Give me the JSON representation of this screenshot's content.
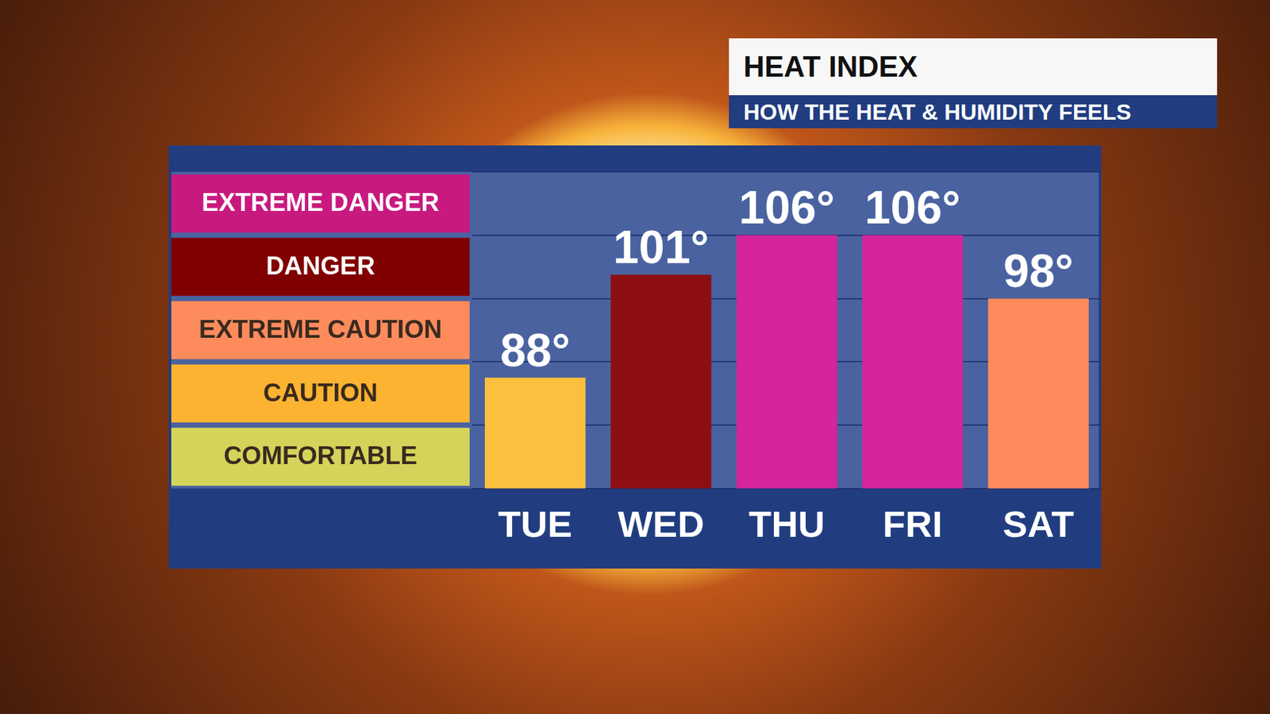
{
  "chart_data": {
    "type": "bar",
    "title": "HEAT INDEX",
    "subtitle": "HOW THE HEAT & HUMIDITY FEELS",
    "categories": [
      "TUE",
      "WED",
      "THU",
      "FRI",
      "SAT"
    ],
    "values": [
      88,
      101,
      106,
      106,
      98
    ],
    "value_labels": [
      "88°",
      "101°",
      "106°",
      "106°",
      "98°"
    ],
    "colors": [
      "#fbc03d",
      "#8e0f13",
      "#d6249a",
      "#d6249a",
      "#fe8b5c"
    ],
    "ylim": [
      74,
      114
    ],
    "yticks": [
      74,
      82,
      90,
      98,
      106,
      114
    ],
    "grid": true,
    "data_labels": true,
    "tick_labels": "x",
    "bands": [
      {
        "label": "EXTREME DANGER",
        "color": "#c8197f"
      },
      {
        "label": "DANGER",
        "color": "#800000"
      },
      {
        "label": "EXTREME CAUTION",
        "color": "#fe8b5c"
      },
      {
        "label": "CAUTION",
        "color": "#fbb331"
      },
      {
        "label": "COMFORTABLE",
        "color": "#d4d45a"
      }
    ]
  }
}
